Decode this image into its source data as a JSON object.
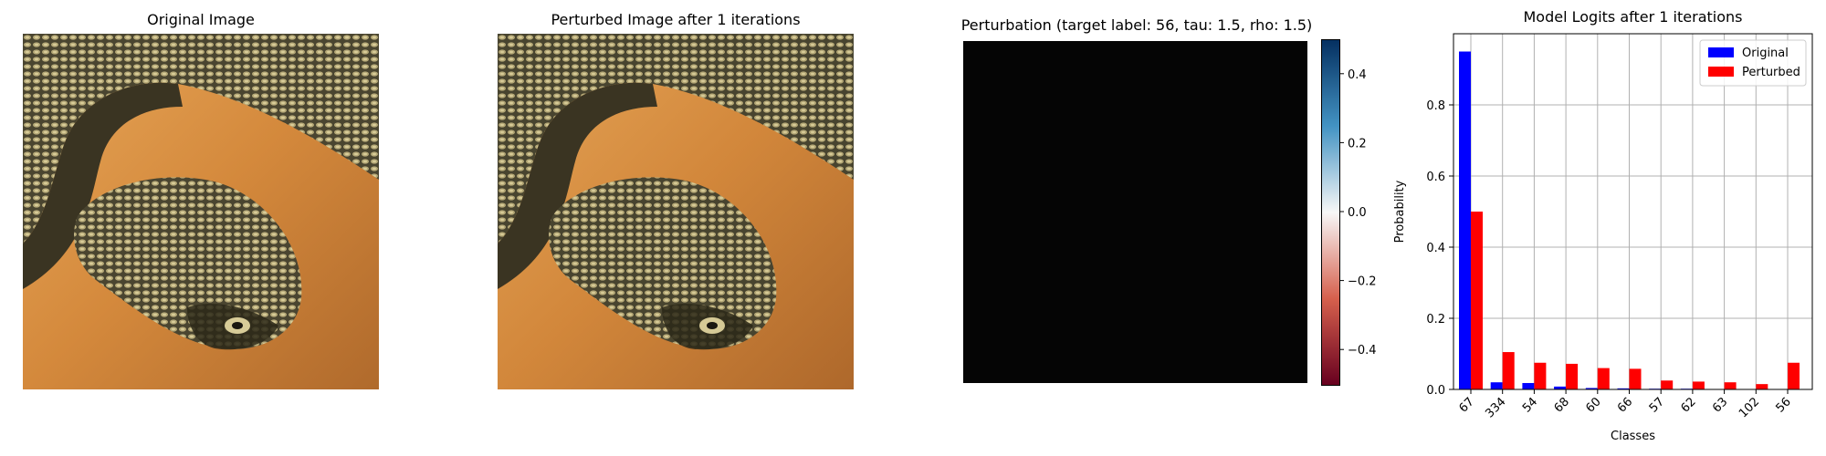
{
  "panels": {
    "original_title": "Original Image",
    "perturbed_title": "Perturbed Image after 1 iterations",
    "perturbation_title": "Perturbation (target label: 56, tau: 1.5, rho: 1.5)"
  },
  "colorbar": {
    "ticks": [
      "0.4",
      "0.2",
      "0.0",
      "−0.2",
      "−0.4"
    ],
    "range": [
      -0.5,
      0.5
    ],
    "tick_values": [
      0.4,
      0.2,
      0.0,
      -0.2,
      -0.4
    ],
    "colors": [
      "#67001f",
      "#d6604d",
      "#f7f7f7",
      "#4393c3",
      "#053061"
    ]
  },
  "chart_data": {
    "type": "bar",
    "title": "Model Logits after 1 iterations",
    "xlabel": "Classes",
    "ylabel": "Probability",
    "ylim": [
      0,
      1.0
    ],
    "yticks": [
      0.0,
      0.2,
      0.4,
      0.6,
      0.8
    ],
    "ytick_labels": [
      "0.0",
      "0.2",
      "0.4",
      "0.6",
      "0.8"
    ],
    "grid": true,
    "legend_position": "top-right",
    "categories": [
      "67",
      "334",
      "54",
      "68",
      "60",
      "66",
      "57",
      "62",
      "63",
      "102",
      "56"
    ],
    "series": [
      {
        "name": "Original",
        "color": "#0000ff",
        "values": [
          0.95,
          0.02,
          0.018,
          0.008,
          0.004,
          0.003,
          0.002,
          0.002,
          0.001,
          0.001,
          0.001
        ]
      },
      {
        "name": "Perturbed",
        "color": "#ff0000",
        "values": [
          0.5,
          0.105,
          0.075,
          0.072,
          0.06,
          0.058,
          0.025,
          0.022,
          0.02,
          0.015,
          0.075
        ]
      }
    ]
  }
}
